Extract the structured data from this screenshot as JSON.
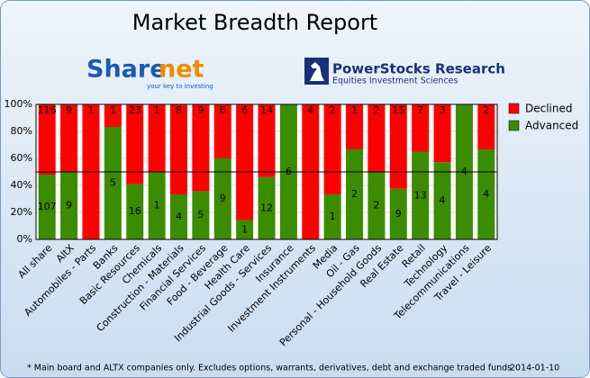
{
  "chart_data": {
    "type": "stacked_percent_bar",
    "title": "Market Breadth Report",
    "logos": {
      "sharenet_a": "Share",
      "sharenet_b": "net",
      "sharenet_tagline": "your key to investing",
      "powerstocks": "PowerStocks  Research",
      "powerstocks_tagline": "Equities Investment Sciences"
    },
    "categories": [
      "All share",
      "AltX",
      "Automobiles - Parts",
      "Banks",
      "Basic Resources",
      "Chemicals",
      "Construction - Materials",
      "Financial Services",
      "Food - Beverage",
      "Health Care",
      "Industrial Goods - Services",
      "Insurance",
      "Investment Instruments",
      "Media",
      "Oil - Gas",
      "Personal - Household Goods",
      "Real Estate",
      "Retail",
      "Technology",
      "Telecommunications",
      "Travel - Leisure"
    ],
    "series": [
      {
        "name": "Advanced",
        "color": "#3c8c00",
        "values": [
          107,
          9,
          0,
          5,
          16,
          1,
          4,
          5,
          9,
          1,
          12,
          6,
          0,
          1,
          2,
          2,
          9,
          13,
          4,
          4,
          4
        ]
      },
      {
        "name": "Declined",
        "color": "#ff0000",
        "values": [
          116,
          9,
          1,
          1,
          23,
          1,
          8,
          9,
          6,
          6,
          14,
          0,
          4,
          2,
          1,
          2,
          15,
          7,
          3,
          0,
          2
        ]
      }
    ],
    "ylim": [
      0,
      100
    ],
    "yticks": [
      {
        "value": 0,
        "label": "0%"
      },
      {
        "value": 20,
        "label": "20%"
      },
      {
        "value": 40,
        "label": "40%"
      },
      {
        "value": 60,
        "label": "60%"
      },
      {
        "value": 80,
        "label": "80%"
      },
      {
        "value": 100,
        "label": "100%"
      }
    ],
    "reference_line": 50,
    "grid": true,
    "legend": "right",
    "note": "* Main board and ALTX companies only. Excludes options, warrants, derivatives, debt and exchange traded funds",
    "date": "2014-01-10"
  }
}
